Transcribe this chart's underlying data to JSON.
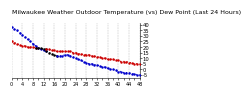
{
  "title": "Milwaukee Weather Outdoor Temperature (vs) Dew Point (Last 24 Hours)",
  "title_fontsize": 4.5,
  "background_color": "#ffffff",
  "ylim": [
    -8,
    42
  ],
  "xlim": [
    0,
    48
  ],
  "grid_color": "#bbbbbb",
  "temp_color": "#0000cc",
  "dewpoint_color": "#cc0000",
  "black_color": "#000000",
  "temp_x": [
    0,
    1,
    2,
    3,
    4,
    5,
    6,
    7,
    8,
    9,
    10,
    11,
    12,
    13,
    14,
    15,
    16,
    17,
    18,
    19,
    20,
    21,
    22,
    23,
    24,
    25,
    26,
    27,
    28,
    29,
    30,
    31,
    32,
    33,
    34,
    35,
    36,
    37,
    38,
    39,
    40,
    41,
    42,
    43,
    44,
    45,
    46,
    47,
    48
  ],
  "temp_y": [
    38,
    36,
    35,
    33,
    31,
    29,
    27,
    25,
    23,
    21,
    19,
    18,
    17,
    16,
    15,
    14,
    13,
    12,
    12,
    12,
    13,
    13,
    12,
    11,
    10,
    9,
    8,
    7,
    6,
    5,
    5,
    4,
    4,
    3,
    2,
    2,
    1,
    0,
    0,
    -1,
    -2,
    -2,
    -3,
    -3,
    -3,
    -4,
    -4,
    -5,
    -5
  ],
  "dew_x": [
    0,
    1,
    2,
    3,
    4,
    5,
    6,
    7,
    8,
    9,
    10,
    11,
    12,
    13,
    14,
    15,
    16,
    17,
    18,
    19,
    20,
    21,
    22,
    23,
    24,
    25,
    26,
    27,
    28,
    29,
    30,
    31,
    32,
    33,
    34,
    35,
    36,
    37,
    38,
    39,
    40,
    41,
    42,
    43,
    44,
    45,
    46,
    47,
    48
  ],
  "dew_y": [
    25,
    24,
    23,
    22,
    21,
    21,
    20,
    20,
    20,
    19,
    19,
    19,
    18,
    18,
    18,
    17,
    17,
    16,
    16,
    16,
    16,
    16,
    16,
    15,
    15,
    14,
    14,
    13,
    13,
    13,
    12,
    12,
    11,
    11,
    10,
    10,
    9,
    9,
    9,
    8,
    8,
    7,
    7,
    7,
    6,
    6,
    5,
    5,
    5
  ],
  "temp_gap_start": 13,
  "temp_gap_end": 17,
  "dew_gap_start": 9,
  "dew_gap_end": 13,
  "ylabel_right_fontsize": 3.8,
  "xtick_fontsize": 3.5,
  "yticks": [
    -5,
    0,
    5,
    10,
    15,
    20,
    25,
    30,
    35,
    40
  ],
  "ytick_labels": [
    "-5",
    "0",
    "5",
    "10",
    "15",
    "20",
    "25",
    "30",
    "35",
    "40"
  ],
  "line_width": 0.9,
  "marker_size": 1.5
}
